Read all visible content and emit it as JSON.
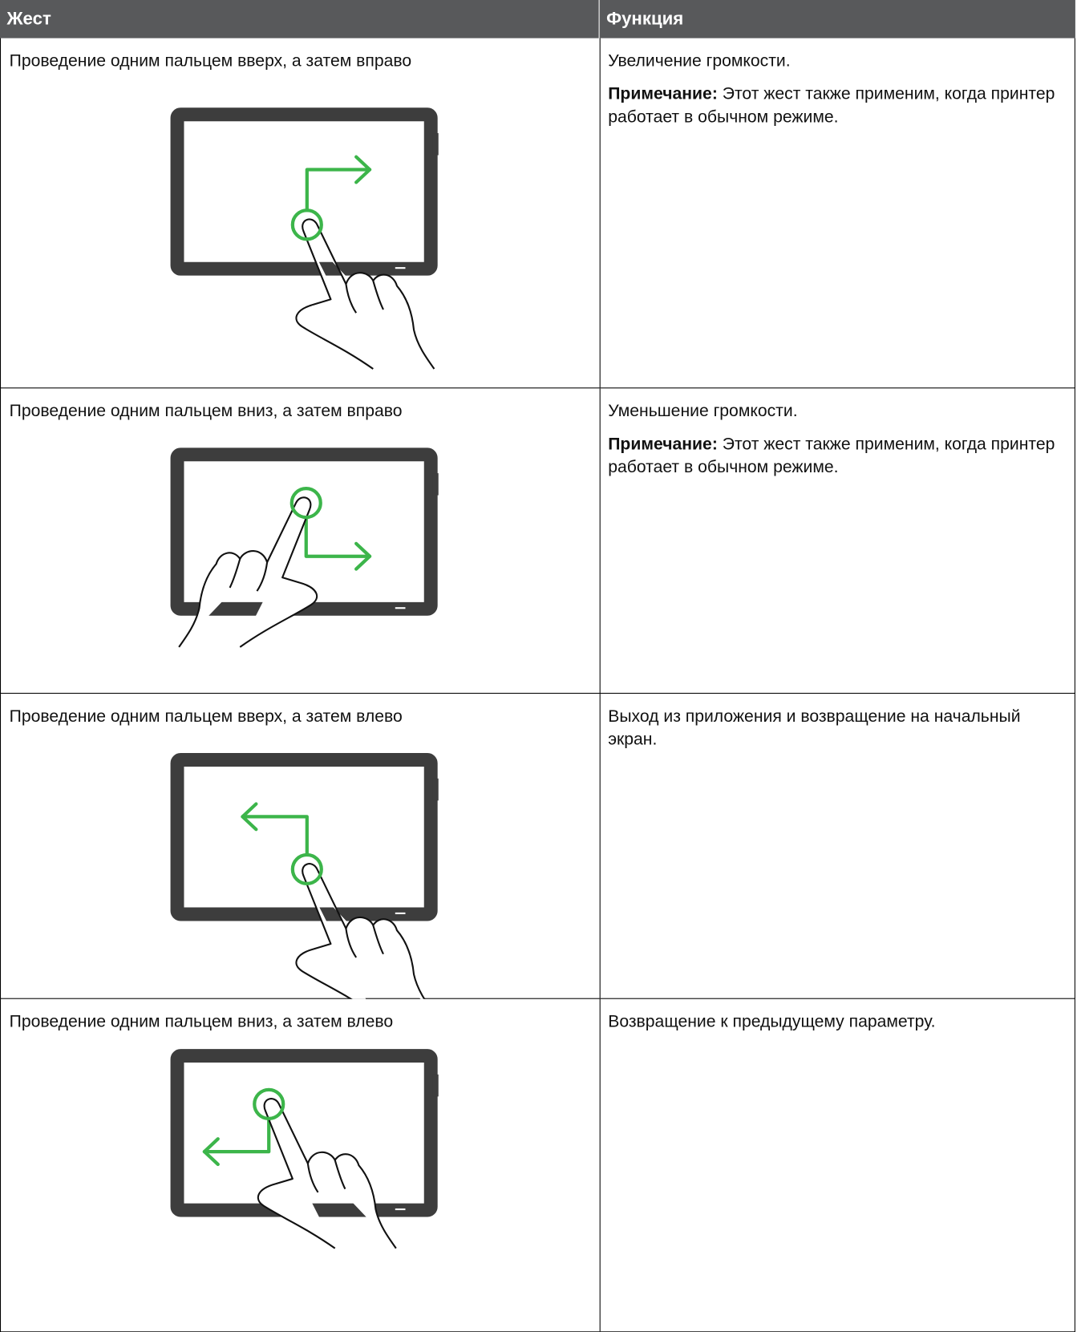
{
  "table": {
    "columns": [
      "Жест",
      "Функция"
    ],
    "rows": [
      {
        "gesture": "Проведение одним пальцем вверх, а затем вправо",
        "function": "Увеличение громкости.",
        "note_label": "Примечание:",
        "note_text": "Этот жест также применим, когда принтер работает в обычном режиме."
      },
      {
        "gesture": "Проведение одним пальцем вниз, а затем вправо",
        "function": "Уменьшение громкости.",
        "note_label": "Примечание:",
        "note_text": "Этот жест также применим, когда принтер работает в обычном режиме."
      },
      {
        "gesture": "Проведение одним пальцем вверх, а затем влево",
        "function": "Выход из приложения и возвращение на начальный экран."
      },
      {
        "gesture": "Проведение одним пальцем вниз, а затем влево",
        "function": "Возвращение к предыдущему параметру."
      }
    ]
  }
}
